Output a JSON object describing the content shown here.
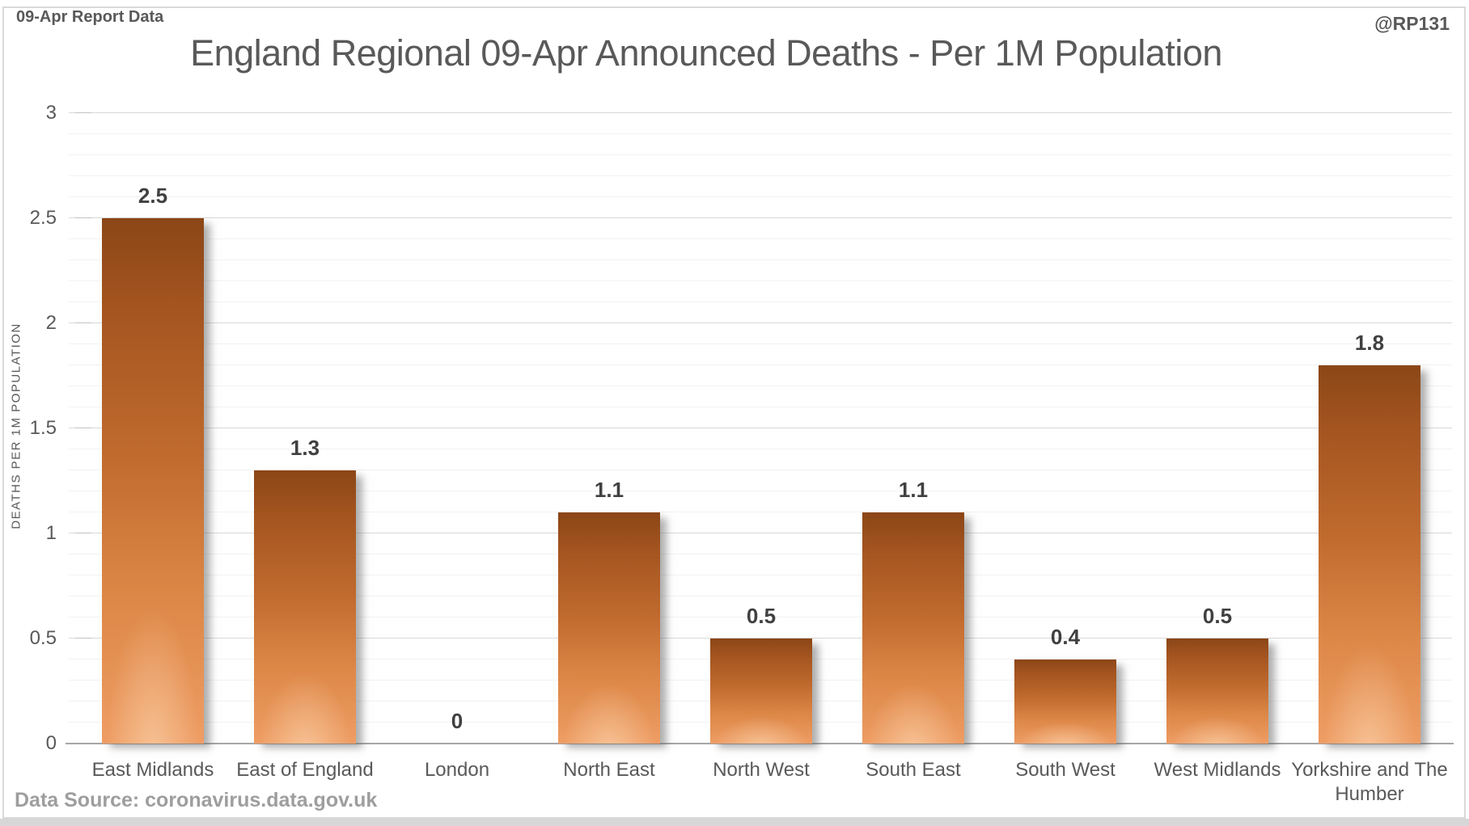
{
  "page": {
    "report_tag": "09-Apr Report Data",
    "watermark": "@RP131",
    "source_note": "Data Source: coronavirus.data.gov.uk"
  },
  "chart_data": {
    "type": "bar",
    "title": "England Regional 09-Apr Announced Deaths - Per 1M Population",
    "xlabel": "",
    "ylabel": "DEATHS PER 1M POPULATION",
    "categories": [
      "East Midlands",
      "East of England",
      "London",
      "North East",
      "North West",
      "South East",
      "South West",
      "West Midlands",
      "Yorkshire and The Humber"
    ],
    "values": [
      2.5,
      1.3,
      0,
      1.1,
      0.5,
      1.1,
      0.4,
      0.5,
      1.8
    ],
    "data_labels": [
      "2.5",
      "1.3",
      "0",
      "1.1",
      "0.5",
      "1.1",
      "0.4",
      "0.5",
      "1.8"
    ],
    "ylim": [
      0,
      3
    ],
    "ytick_step": 0.5,
    "ytick_labels": [
      "0",
      "0.5",
      "1",
      "1.5",
      "2",
      "2.5",
      "3"
    ],
    "minor_grid_step": 0.1,
    "grid": true,
    "legend": false,
    "colors": {
      "bar_top": "#8b4617",
      "bar_mid": "#c06a2e",
      "bar_bottom": "#ee9d64",
      "grid_major": "#d9d9d9",
      "grid_minor": "#f2f2f2",
      "axis_line": "#a6a6a6",
      "title_text": "#595959",
      "tick_text": "#595959",
      "data_label_text": "#404040",
      "source_text": "#9e9e9e",
      "frame_border": "#d9d9d9",
      "bottom_strip": "#d7d7d7"
    }
  }
}
